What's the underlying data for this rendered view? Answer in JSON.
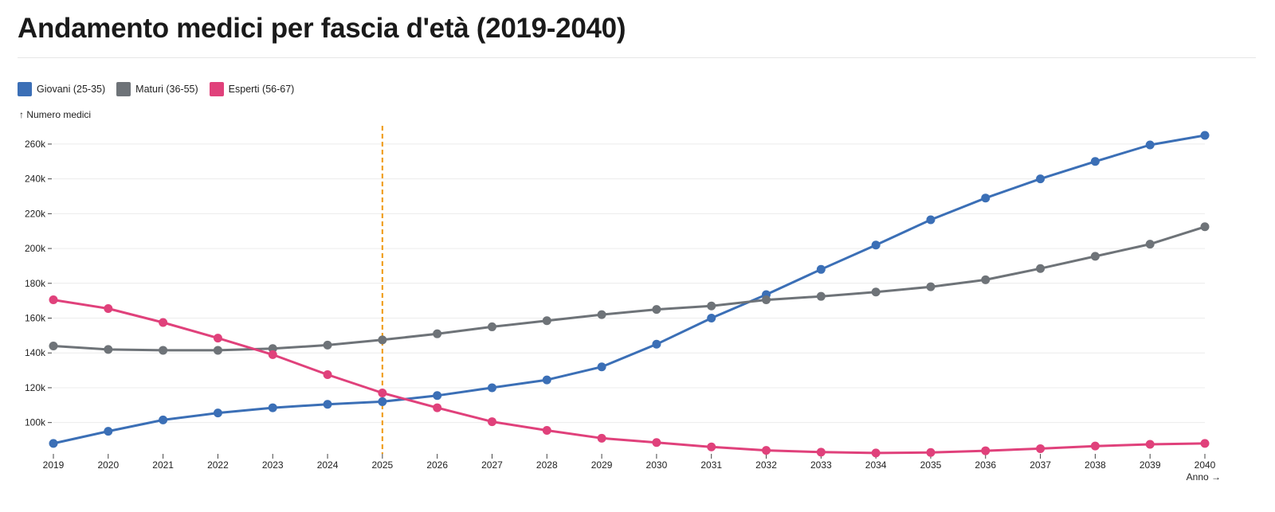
{
  "page": {
    "title": "Andamento medici per fascia d'età (2019-2040)"
  },
  "colors": {
    "giovani": "#3b6fb6",
    "maturi": "#6e7378",
    "esperti": "#e0417b",
    "marker": "#f0a022",
    "grid": "#ececec"
  },
  "chart_data": {
    "type": "line",
    "title": "Andamento medici per fascia d'età (2019-2040)",
    "ylabel": "↑ Numero medici",
    "xlabel": "Anno →",
    "ylim": [
      82000,
      265000
    ],
    "yticks": [
      100000,
      120000,
      140000,
      160000,
      180000,
      200000,
      220000,
      240000,
      260000
    ],
    "ytick_labels": [
      "100k",
      "120k",
      "140k",
      "160k",
      "180k",
      "200k",
      "220k",
      "240k",
      "260k"
    ],
    "x": [
      2019,
      2020,
      2021,
      2022,
      2023,
      2024,
      2025,
      2026,
      2027,
      2028,
      2029,
      2030,
      2031,
      2032,
      2033,
      2034,
      2035,
      2036,
      2037,
      2038,
      2039,
      2040
    ],
    "reference_line": {
      "x": 2025,
      "style": "dashed"
    },
    "series": [
      {
        "name": "Giovani (25-35)",
        "color": "#3b6fb6",
        "values": [
          88000,
          95000,
          101500,
          105500,
          108500,
          110500,
          112000,
          115500,
          120000,
          124500,
          132000,
          145000,
          160000,
          173500,
          188000,
          202000,
          216500,
          229000,
          240000,
          250000,
          259500,
          265000
        ]
      },
      {
        "name": "Maturi (36-55)",
        "color": "#6e7378",
        "values": [
          144000,
          142000,
          141500,
          141500,
          142500,
          144500,
          147500,
          151000,
          155000,
          158500,
          162000,
          165000,
          167000,
          170500,
          172500,
          175000,
          178000,
          182000,
          188500,
          195500,
          202500,
          212500
        ]
      },
      {
        "name": "Esperti (56-67)",
        "color": "#e0417b",
        "values": [
          170500,
          165500,
          157500,
          148500,
          139000,
          127500,
          117000,
          108500,
          100500,
          95500,
          91000,
          88500,
          86000,
          84000,
          83000,
          82500,
          82800,
          83800,
          85000,
          86500,
          87500,
          88000
        ]
      }
    ]
  }
}
